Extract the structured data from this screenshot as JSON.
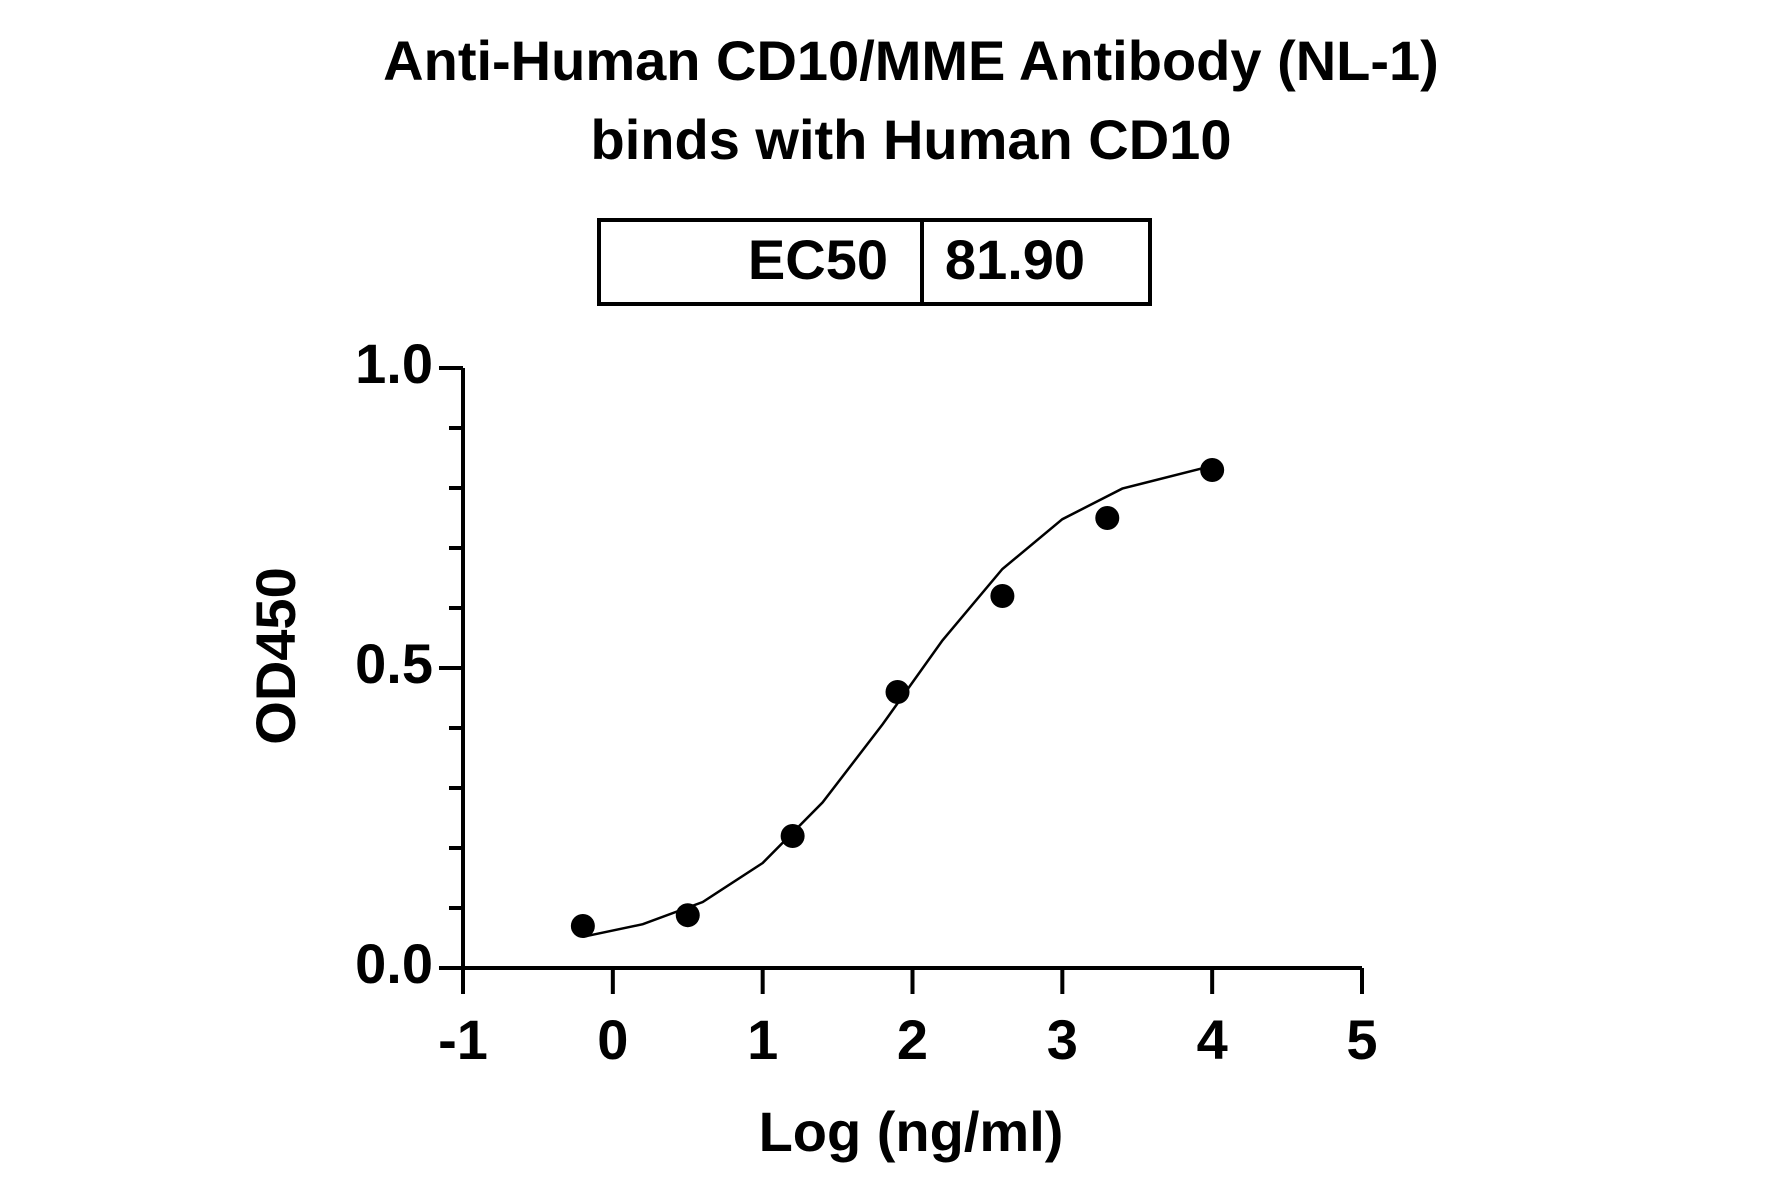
{
  "chart_data": {
    "type": "scatter",
    "title": [
      "Anti-Human CD10/MME Antibody (NL-1)",
      "binds with Human CD10"
    ],
    "ec50_table": [
      "EC50",
      "81.90"
    ],
    "x_label": "Log (ng/ml)",
    "y_label": "OD450",
    "xlim": [
      -1,
      5
    ],
    "xticks": [
      -1,
      0,
      1,
      2,
      3,
      4,
      5
    ],
    "ylim": [
      0,
      1
    ],
    "yticks": [
      {
        "value": 0,
        "label": "0.0"
      },
      {
        "value": 0.5,
        "label": "0.5"
      },
      {
        "value": 1,
        "label": "1.0"
      }
    ],
    "yminorticks": [
      0.1,
      0.2,
      0.3,
      0.4,
      0.6,
      0.7,
      0.8,
      0.9
    ],
    "color": "#000000",
    "x": [
      -0.2,
      0.5,
      1.2,
      1.9,
      2.6,
      3.3,
      4.0
    ],
    "values": [
      0.07,
      0.088,
      0.22,
      0.46,
      0.62,
      0.75,
      0.83
    ],
    "fit": {
      "x": [
        -0.2,
        0.2,
        0.6,
        1.0,
        1.4,
        1.8,
        2.2,
        2.6,
        3.0,
        3.4,
        4.0
      ],
      "values": [
        0.052,
        0.073,
        0.11,
        0.175,
        0.276,
        0.406,
        0.546,
        0.665,
        0.748,
        0.799,
        0.837
      ]
    }
  }
}
